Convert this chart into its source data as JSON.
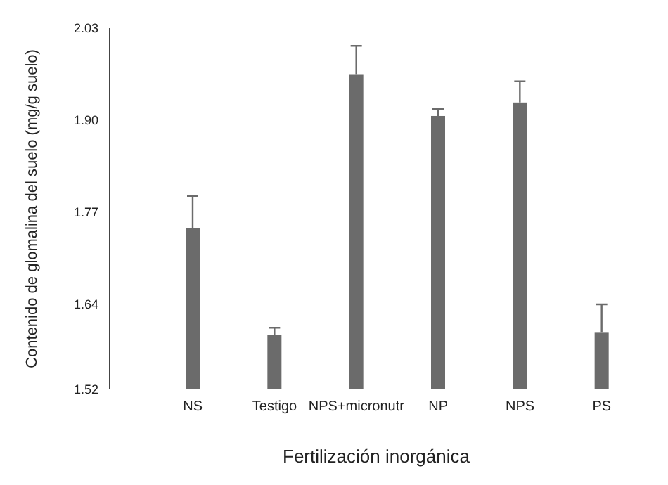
{
  "chart_data": {
    "type": "bar",
    "xlabel": "Fertilización inorgánica",
    "ylabel": "Contenido de glomalina del suelo (mg/g suelo)",
    "categories": [
      "NS",
      "Testigo",
      "NPS+micronutr",
      "NP",
      "NPS",
      "PS"
    ],
    "values": [
      1.748,
      1.597,
      1.965,
      1.906,
      1.925,
      1.6
    ],
    "errors": [
      [
        1.748,
        1.793
      ],
      [
        1.597,
        1.607
      ],
      [
        1.965,
        2.005
      ],
      [
        1.906,
        1.916
      ],
      [
        1.925,
        1.955
      ],
      [
        1.6,
        1.64
      ]
    ],
    "color": "#6b6b6b",
    "ylim": [
      1.52,
      2.03
    ],
    "yticks": [
      1.52,
      1.64,
      1.77,
      {
        "value": 1.9,
        "label": "1.90"
      },
      2.03
    ],
    "grid": false
  }
}
